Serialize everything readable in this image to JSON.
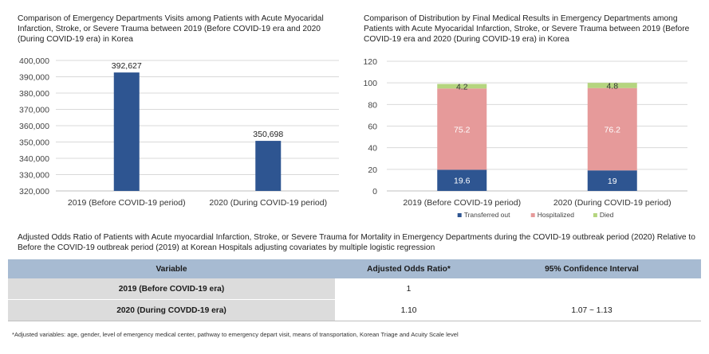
{
  "chart_data": [
    {
      "type": "bar",
      "title": "Comparison of Emergency Departments  Visits among Patients with Acute Myocaridal Infarction, Stroke, or Severe Trauma between 2019 (Before COVID-19 era and 2020 (During COVID-19 era) in Korea",
      "categories": [
        "2019 (Before COVID-19 period)",
        "2020 (During COVID-19 period)"
      ],
      "values": [
        392627,
        350698
      ],
      "value_labels": [
        "392,627",
        "350,698"
      ],
      "ylim": [
        320000,
        400000
      ],
      "yticks": [
        320000,
        330000,
        340000,
        350000,
        360000,
        370000,
        380000,
        390000,
        400000
      ],
      "ytick_labels": [
        "320,000",
        "330,000",
        "340,000",
        "350,000",
        "360,000",
        "370,000",
        "380,000",
        "390,000",
        "400,000"
      ],
      "grid": true,
      "color": "#2e5591"
    },
    {
      "type": "bar",
      "stacked": true,
      "title": "Comparison of Distribution by Final Medical Results in Emergency Departments among Patients with Acute Myocaridal Infarction, Stroke, or Severe Trauma between 2019 (Before COVID-19 era and 2020 (During COVID-19 era) in Korea",
      "categories": [
        "2019 (Before COVID-19 period)",
        "2020 (During COVID-19 period)"
      ],
      "series": [
        {
          "name": "Transferred out",
          "values": [
            19.6,
            19
          ],
          "labels": [
            "19.6",
            "19"
          ],
          "color": "#2e5591",
          "label_color": "#ffffff"
        },
        {
          "name": "Hospitalized",
          "values": [
            75.2,
            76.2
          ],
          "labels": [
            "75.2",
            "76.2"
          ],
          "color": "#e69a9a",
          "label_color": "#ffffff"
        },
        {
          "name": "Died",
          "values": [
            4.2,
            4.8
          ],
          "labels": [
            "4.2",
            "4.8"
          ],
          "color": "#b5d57f",
          "label_color": "#333333"
        }
      ],
      "ylim": [
        0,
        120
      ],
      "yticks": [
        0,
        20,
        40,
        60,
        80,
        100,
        120
      ],
      "grid": true,
      "legend": "bottom"
    }
  ],
  "table": {
    "caption": "Adjusted Odds Ratio of Patients with Acute myocardial Infarction, Stroke, or Severe Trauma for  Mortality in Emergency Departments during the COVID-19 outbreak period (2020) Relative to Before the COVID-19 outbreak period (2019) at Korean Hospitals adjusting covariates by multiple logistic regression",
    "headers": [
      "Variable",
      "Adjusted Odds Ratio*",
      "95% Confidence Interval"
    ],
    "rows": [
      [
        "2019 (Before COVID-19 era)",
        "1",
        ""
      ],
      [
        "2020 (During COVDD-19 era)",
        "1.10",
        "1.07 ~ 1.13"
      ]
    ],
    "header_color": "#a7bbd2",
    "variable_cell_color": "#dcdcdc"
  },
  "footnote": "*Adjusted variables: age, gender, level of emergency medical center, pathway to emergency depart visit, means of transportation, Korean Triage and Acuity Scale level"
}
